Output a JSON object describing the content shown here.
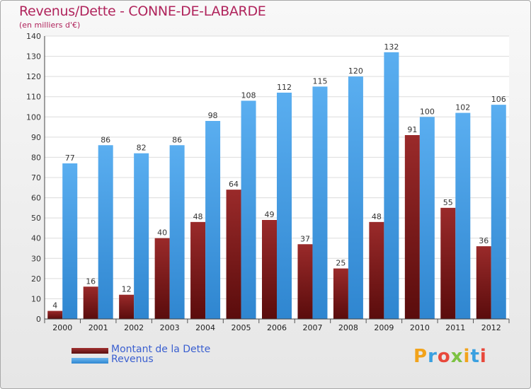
{
  "title": "Revenus/Dette - CONNE-DE-LABARDE",
  "subtitle": "(en milliers d'€)",
  "logo": {
    "letters": [
      "P",
      "r",
      "o",
      "x",
      "i",
      "t",
      "i"
    ],
    "colors": [
      "#f2a31b",
      "#3aa0e0",
      "#e8483b",
      "#7cc242",
      "#f2a31b",
      "#3aa0e0",
      "#e8483b"
    ]
  },
  "legend": [
    {
      "label": "Montant de la Dette",
      "color": "#7a1f1f"
    },
    {
      "label": "Revenus",
      "color": "#3f9de6"
    }
  ],
  "chart_data": {
    "type": "bar",
    "title": "Revenus/Dette - CONNE-DE-LABARDE",
    "subtitle": "(en milliers d'€)",
    "categories": [
      "2000",
      "2001",
      "2002",
      "2003",
      "2004",
      "2005",
      "2006",
      "2007",
      "2008",
      "2009",
      "2010",
      "2011",
      "2012"
    ],
    "series": [
      {
        "name": "Montant de la Dette",
        "color": "#7a1f1f",
        "values": [
          4,
          16,
          12,
          40,
          48,
          64,
          49,
          37,
          25,
          48,
          91,
          55,
          36
        ]
      },
      {
        "name": "Revenus",
        "color": "#3f9de6",
        "values": [
          77,
          86,
          82,
          86,
          98,
          108,
          112,
          115,
          120,
          132,
          100,
          102,
          106
        ]
      }
    ],
    "ylim": [
      0,
      140
    ],
    "yticks": [
      0,
      10,
      20,
      30,
      40,
      50,
      60,
      70,
      80,
      90,
      100,
      110,
      120,
      130,
      140
    ],
    "grid": true,
    "legend_position": "bottom-left"
  }
}
